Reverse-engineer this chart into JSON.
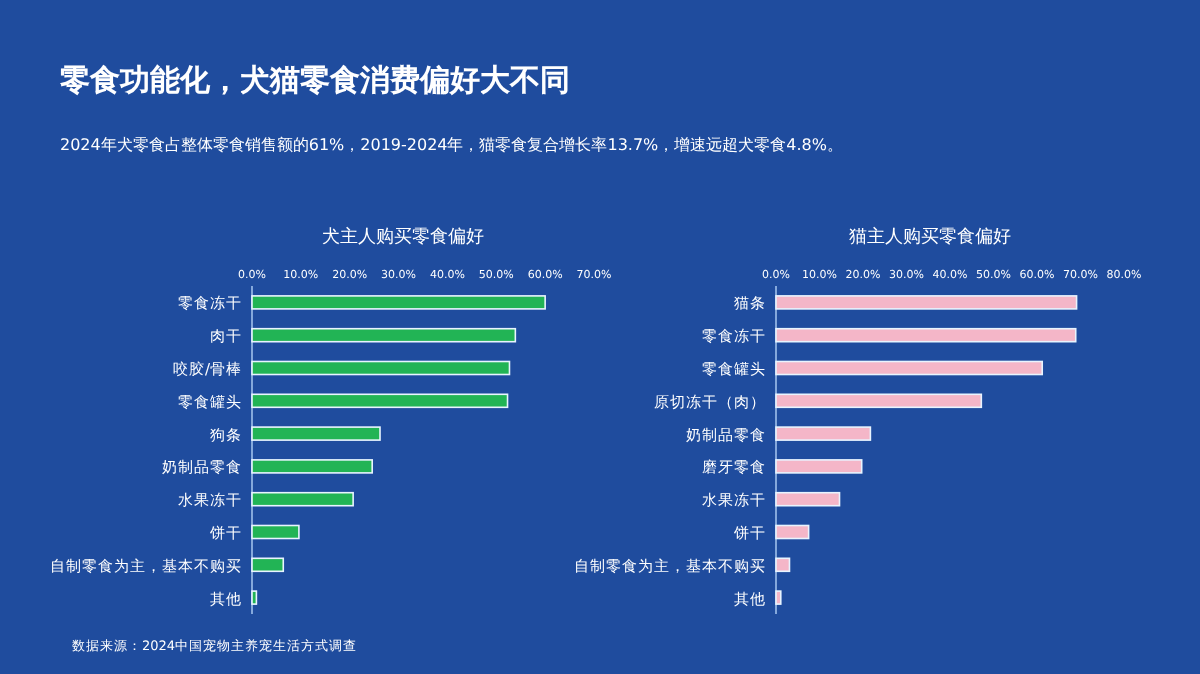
{
  "chart_data": [
    {
      "type": "other",
      "title": "零食功能化，犬猫零食消费偏好大不同",
      "subtitle": "2024年犬零食占整体零食销售额的61%，2019-2024年，猫零食复合增长率13.7%，增速远超犬零食4.8%。",
      "annotations": [
        "数据来源：2024中国宠物主养宠生活方式调查"
      ]
    },
    {
      "type": "bar",
      "orientation": "horizontal",
      "title": "犬主人购买零食偏好",
      "categories": [
        "零食冻干",
        "肉干",
        "咬胶/骨棒",
        "零食罐头",
        "狗条",
        "奶制品零食",
        "水果冻干",
        "饼干",
        "自制零食为主，基本不购买",
        "其他"
      ],
      "values": [
        60.0,
        53.9,
        52.7,
        52.3,
        26.2,
        24.6,
        20.7,
        9.6,
        6.4,
        0.9
      ],
      "color": "#22b455",
      "xlim": [
        0,
        70
      ],
      "xticks": [
        {
          "value": 0,
          "label": "0.0%"
        },
        {
          "value": 10,
          "label": "10.0%"
        },
        {
          "value": 20,
          "label": "20.0%"
        },
        {
          "value": 30,
          "label": "30.0%"
        },
        {
          "value": 40,
          "label": "40.0%"
        },
        {
          "value": 50,
          "label": "50.0%"
        },
        {
          "value": 60,
          "label": "60.0%"
        },
        {
          "value": 70,
          "label": "70.0%"
        }
      ],
      "grid": false
    },
    {
      "type": "bar",
      "orientation": "horizontal",
      "title": "猫主人购买零食偏好",
      "categories": [
        "猫条",
        "零食冻干",
        "零食罐头",
        "原切冻干（肉）",
        "奶制品零食",
        "磨牙零食",
        "水果冻干",
        "饼干",
        "自制零食为主，基本不购买",
        "其他"
      ],
      "values": [
        69.1,
        68.9,
        61.2,
        47.2,
        21.7,
        19.7,
        14.6,
        7.5,
        3.1,
        1.1
      ],
      "color": "#f4b6c8",
      "xlim": [
        0,
        80
      ],
      "xticks": [
        {
          "value": 0,
          "label": "0.0%"
        },
        {
          "value": 10,
          "label": "10.0%"
        },
        {
          "value": 20,
          "label": "20.0%"
        },
        {
          "value": 30,
          "label": "30.0%"
        },
        {
          "value": 40,
          "label": "40.0%"
        },
        {
          "value": 50,
          "label": "50.0%"
        },
        {
          "value": 60,
          "label": "60.0%"
        },
        {
          "value": 70,
          "label": "70.0%"
        },
        {
          "value": 80,
          "label": "80.0%"
        }
      ],
      "grid": false
    }
  ]
}
